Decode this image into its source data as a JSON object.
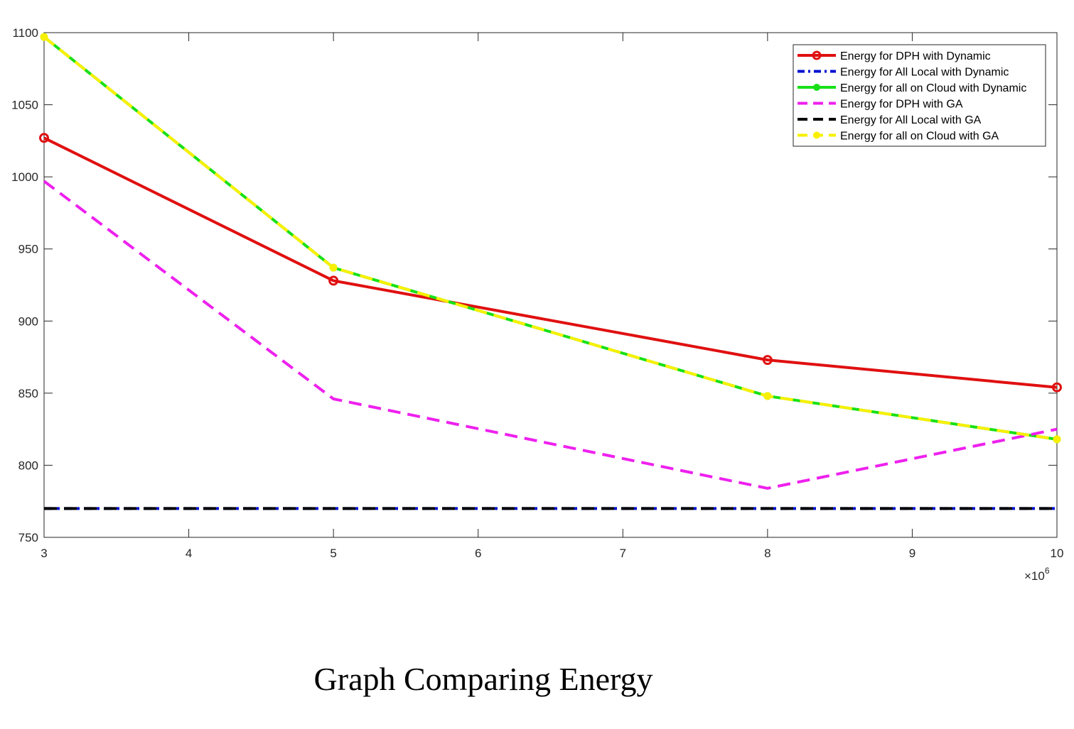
{
  "caption": "Graph Comparing Energy",
  "chart_data": {
    "type": "line",
    "x": [
      3,
      5,
      8,
      10
    ],
    "x_multiplier_label": "×10",
    "x_multiplier_exponent": "6",
    "xlim": [
      3,
      10
    ],
    "ylim": [
      750,
      1100
    ],
    "xticks": [
      3,
      4,
      5,
      6,
      7,
      8,
      9,
      10
    ],
    "yticks": [
      750,
      800,
      850,
      900,
      950,
      1000,
      1050,
      1100
    ],
    "grid": false,
    "legend_position": "top-right",
    "series": [
      {
        "name": "Energy for DPH with Dynamic",
        "values": [
          1027,
          928,
          873,
          854
        ],
        "color": "#e01010",
        "dash": "solid",
        "marker": "circle"
      },
      {
        "name": "Energy for All Local with Dynamic",
        "values": [
          770,
          770,
          770,
          770
        ],
        "color": "#0010d0",
        "dash": "dashdot",
        "marker": "none"
      },
      {
        "name": "Energy for all on Cloud with Dynamic",
        "values": [
          1097,
          937,
          848,
          818
        ],
        "color": "#18e018",
        "dash": "solid",
        "marker": "dot"
      },
      {
        "name": "Energy for DPH with GA",
        "values": [
          997,
          846,
          784,
          825
        ],
        "color": "#ee20ee",
        "dash": "dash",
        "marker": "none"
      },
      {
        "name": "Energy for All Local with GA",
        "values": [
          770,
          770,
          770,
          770
        ],
        "color": "#000000",
        "dash": "dash",
        "marker": "none"
      },
      {
        "name": "Energy for all on Cloud with GA",
        "values": [
          1097,
          937,
          848,
          818
        ],
        "color": "#f8f000",
        "dash": "dash",
        "marker": "dot"
      }
    ]
  }
}
